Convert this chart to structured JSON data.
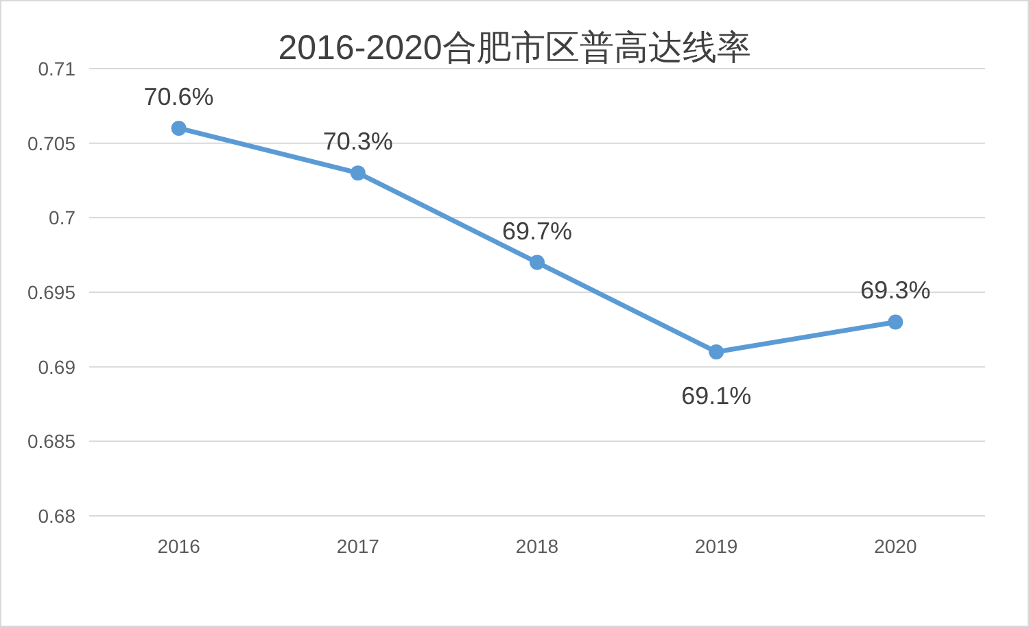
{
  "chart_data": {
    "type": "line",
    "title": "2016-2020合肥市区普高达线率",
    "categories": [
      "2016",
      "2017",
      "2018",
      "2019",
      "2020"
    ],
    "series": [
      {
        "color": "#5b9bd5",
        "values": [
          0.706,
          0.703,
          0.697,
          0.691,
          0.693
        ],
        "value_labels": [
          "70.6%",
          "70.3%",
          "69.7%",
          "69.1%",
          "69.3%"
        ]
      }
    ],
    "ylim": [
      0.68,
      0.71
    ],
    "yticks": [
      0.68,
      0.685,
      0.69,
      0.695,
      0.7,
      0.705,
      0.71
    ],
    "grid": "y",
    "marker": "circle",
    "line_style": "solid"
  }
}
